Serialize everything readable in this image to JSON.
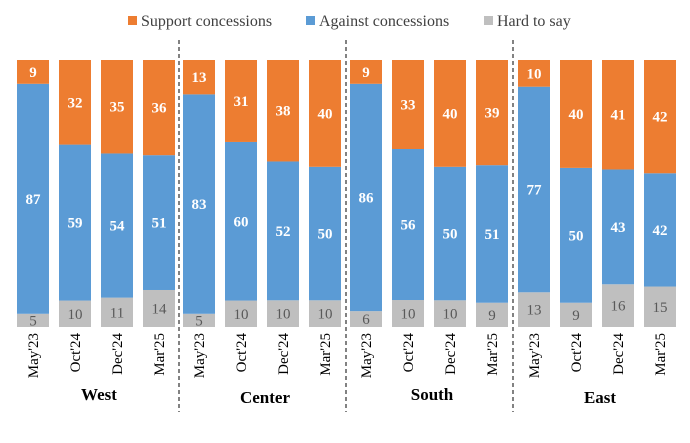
{
  "chart_data": {
    "type": "bar",
    "stacked": true,
    "title": "",
    "xlabel": "",
    "ylabel": "",
    "ylim": [
      0,
      100
    ],
    "legend_position": "top",
    "series_order_bottom_to_top": [
      "Hard to say",
      "Against concessions",
      "Support concessions"
    ],
    "legend": [
      "Support concessions",
      "Against concessions",
      "Hard to say"
    ],
    "colors": {
      "Support concessions": "#ED7D31",
      "Against concessions": "#5B9BD5",
      "Hard to say": "#BFBFBF"
    },
    "periods": [
      "May'23",
      "Oct'24",
      "Dec'24",
      "Mar'25"
    ],
    "groups": [
      {
        "name": "West",
        "support": [
          9,
          32,
          35,
          36
        ],
        "against": [
          87,
          59,
          54,
          51
        ],
        "hard": [
          5,
          10,
          11,
          14
        ]
      },
      {
        "name": "Center",
        "support": [
          13,
          31,
          38,
          40
        ],
        "against": [
          83,
          60,
          52,
          50
        ],
        "hard": [
          5,
          10,
          10,
          10
        ]
      },
      {
        "name": "South",
        "support": [
          9,
          33,
          40,
          39
        ],
        "against": [
          86,
          56,
          50,
          51
        ],
        "hard": [
          6,
          10,
          10,
          9
        ]
      },
      {
        "name": "East",
        "support": [
          10,
          40,
          41,
          42
        ],
        "against": [
          77,
          50,
          43,
          42
        ],
        "hard": [
          13,
          9,
          16,
          15
        ]
      }
    ]
  }
}
